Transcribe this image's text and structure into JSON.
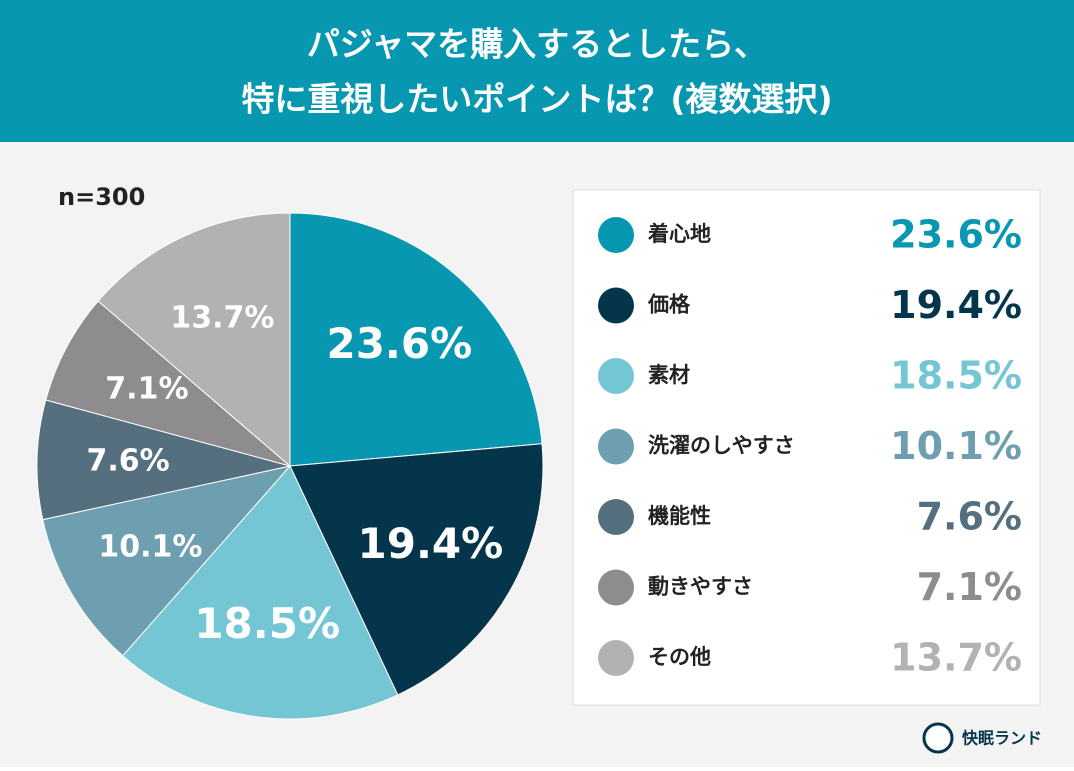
{
  "chart_data": {
    "type": "pie",
    "title": [
      "パジャマを購入するとしたら、",
      "特に重視したいポイントは？(複数選択)"
    ],
    "note": "n=300",
    "categories": [
      "着心地",
      "価格",
      "素材",
      "洗濯のしやすさ",
      "機能性",
      "動きやすさ",
      "その他"
    ],
    "values": [
      23.6,
      19.4,
      18.5,
      10.1,
      7.6,
      7.1,
      13.7
    ],
    "value_labels": [
      "23.6%",
      "19.4%",
      "18.5%",
      "10.1%",
      "7.6%",
      "7.1%",
      "13.7%"
    ],
    "colors": [
      "#0797b0",
      "#04354b",
      "#74c6d4",
      "#6e9fb0",
      "#566f7e",
      "#8e8c8f",
      "#b2b2b2"
    ],
    "brand": "快眠ランド"
  }
}
